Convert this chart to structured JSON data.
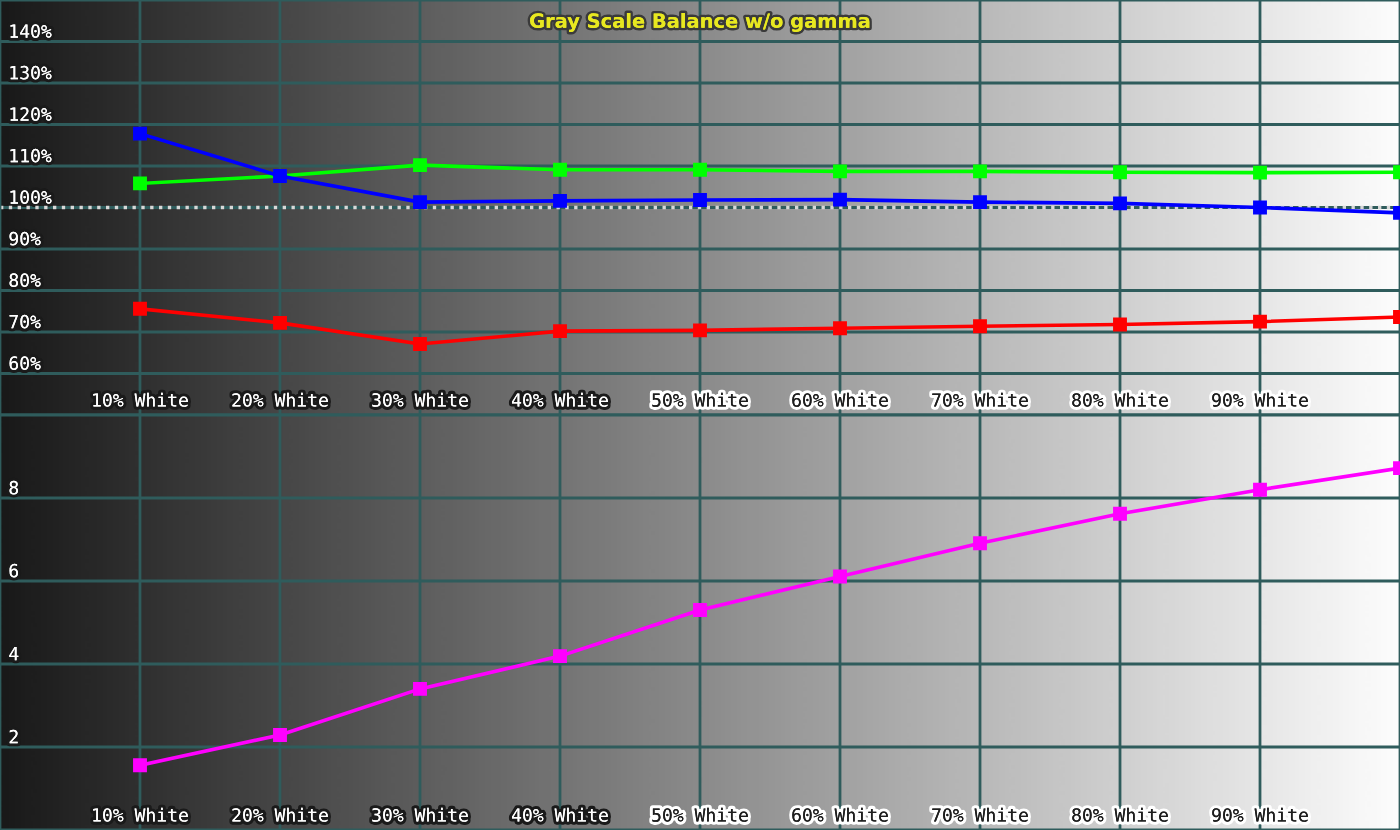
{
  "chart_data": [
    {
      "type": "line",
      "title": "Gray Scale Balance w/o gamma",
      "x": [
        10,
        20,
        30,
        40,
        50,
        60,
        70,
        80,
        90,
        100
      ],
      "series": [
        {
          "color": "#ff0000",
          "values": [
            75.6,
            72.2,
            67.1,
            70.2,
            70.4,
            70.9,
            71.4,
            71.8,
            72.5,
            73.6
          ]
        },
        {
          "color": "#00ff00",
          "values": [
            105.8,
            107.6,
            110.2,
            109.1,
            109.1,
            108.7,
            108.7,
            108.5,
            108.4,
            108.5
          ]
        },
        {
          "color": "#0000ff",
          "values": [
            117.8,
            107.6,
            101.3,
            101.6,
            101.8,
            101.9,
            101.3,
            101.0,
            100.0,
            98.7
          ]
        }
      ],
      "xlim": [
        0,
        100
      ],
      "xticks": [
        {
          "value": 10,
          "label": "10% White"
        },
        {
          "value": 20,
          "label": "20% White"
        },
        {
          "value": 30,
          "label": "30% White"
        },
        {
          "value": 40,
          "label": "40% White"
        },
        {
          "value": 50,
          "label": "50% White"
        },
        {
          "value": 60,
          "label": "60% White"
        },
        {
          "value": 70,
          "label": "70% White"
        },
        {
          "value": 80,
          "label": "80% White"
        },
        {
          "value": 90,
          "label": "90% White"
        }
      ],
      "ylim": [
        50,
        150
      ],
      "yticks": [
        {
          "value": 60,
          "label": "60%"
        },
        {
          "value": 70,
          "label": "70%"
        },
        {
          "value": 80,
          "label": "80%"
        },
        {
          "value": 90,
          "label": "90%"
        },
        {
          "value": 100,
          "label": "100%"
        },
        {
          "value": 110,
          "label": "110%"
        },
        {
          "value": 120,
          "label": "120%"
        },
        {
          "value": 130,
          "label": "130%"
        },
        {
          "value": 140,
          "label": "140%"
        }
      ],
      "ref_lines": [
        {
          "axis": "y",
          "value": 100,
          "color": "#d8d8d8",
          "line_style": "dotted"
        }
      ],
      "grid": true,
      "marker": "square",
      "line_style": "solid"
    },
    {
      "type": "line",
      "x": [
        10,
        20,
        30,
        40,
        50,
        60,
        70,
        80,
        90,
        100
      ],
      "series": [
        {
          "color": "#ff00ff",
          "values": [
            1.56,
            2.29,
            3.4,
            4.19,
            5.3,
            6.11,
            6.91,
            7.62,
            8.2,
            8.72
          ]
        }
      ],
      "xlim": [
        0,
        100
      ],
      "xticks": [
        {
          "value": 10,
          "label": "10% White"
        },
        {
          "value": 20,
          "label": "20% White"
        },
        {
          "value": 30,
          "label": "30% White"
        },
        {
          "value": 40,
          "label": "40% White"
        },
        {
          "value": 50,
          "label": "50% White"
        },
        {
          "value": 60,
          "label": "60% White"
        },
        {
          "value": 70,
          "label": "70% White"
        },
        {
          "value": 80,
          "label": "80% White"
        },
        {
          "value": 90,
          "label": "90% White"
        }
      ],
      "ylim": [
        0,
        10
      ],
      "yticks": [
        2,
        4,
        6,
        8
      ],
      "grid": true,
      "marker": "square",
      "line_style": "solid"
    }
  ]
}
